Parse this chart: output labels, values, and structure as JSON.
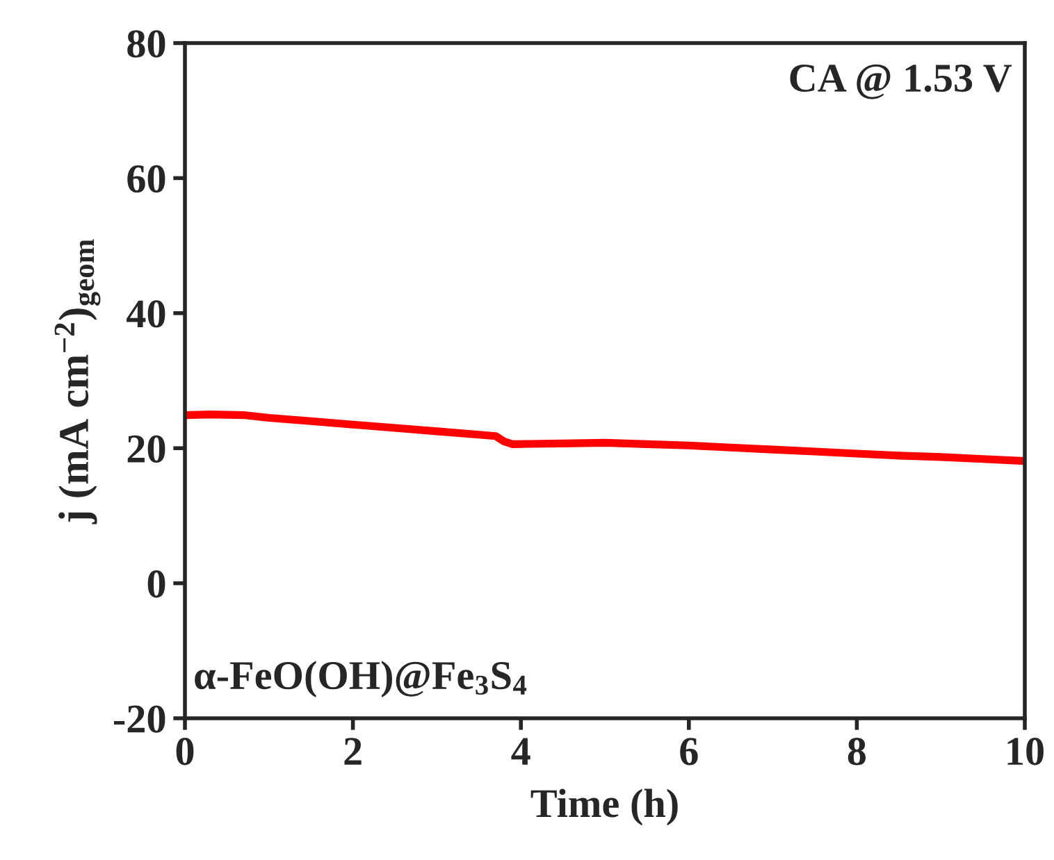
{
  "chart_data": {
    "type": "line",
    "xlabel": "Time (h)",
    "ylabel": "j (mA cm$^{−2}$)$_{geom}$",
    "annotations": [
      "CA @ 1.53 V",
      "α-FeO(OH)@Fe$_{3}$S$_{4}$"
    ],
    "series": [
      {
        "color": "#ff0000",
        "x": [
          0,
          0.3,
          0.7,
          1.0,
          1.5,
          2.0,
          2.5,
          3.0,
          3.5,
          3.7,
          3.8,
          3.9,
          4.5,
          5.0,
          5.5,
          6.0,
          6.5,
          7.0,
          7.5,
          8.0,
          8.5,
          9.0,
          9.5,
          10.0
        ],
        "values": [
          24.9,
          25.0,
          24.9,
          24.5,
          24.0,
          23.5,
          23.0,
          22.5,
          22.0,
          21.8,
          21.0,
          20.6,
          20.7,
          20.8,
          20.6,
          20.4,
          20.1,
          19.8,
          19.5,
          19.2,
          18.9,
          18.7,
          18.4,
          18.1
        ]
      }
    ],
    "xlim": [
      0,
      10
    ],
    "xticks": [
      0,
      2,
      4,
      6,
      8,
      10
    ],
    "ylim": [
      -20,
      80
    ],
    "yticks": [
      -20,
      0,
      20,
      40,
      60,
      80
    ],
    "grid": false,
    "legend": false,
    "line_style": "solid",
    "marker": "none"
  }
}
